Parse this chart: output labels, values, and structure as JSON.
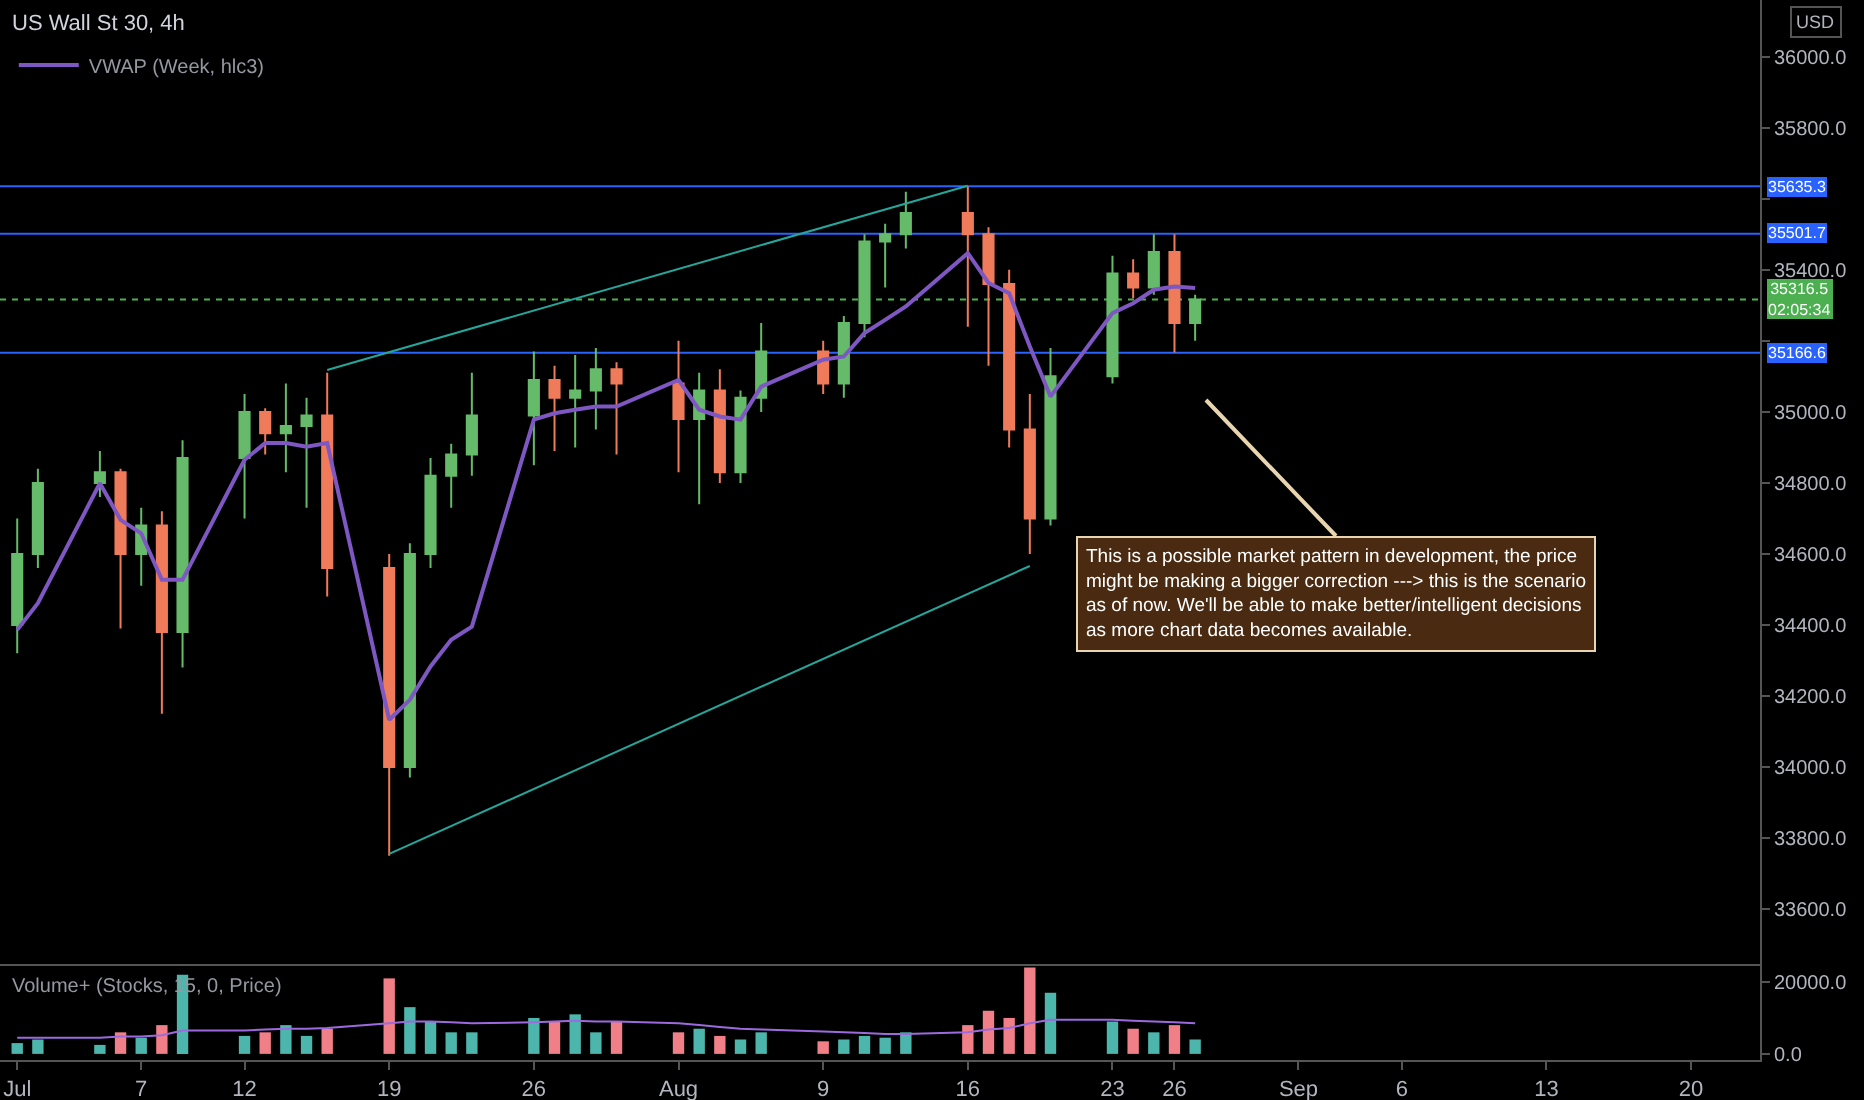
{
  "chart_data": [
    {
      "type": "candlestick",
      "title": "US Wall St 30, 4h",
      "ylabel": "USD",
      "x": [
        "--07-01",
        "--07-02",
        "--07-05",
        "--07-06",
        "--07-07",
        "--07-08",
        "--07-09",
        "--07-12",
        "--07-13",
        "--07-14",
        "--07-15",
        "--07-16",
        "--07-19",
        "--07-20",
        "--07-21",
        "--07-22",
        "--07-23",
        "--07-26",
        "--07-27",
        "--07-28",
        "--07-29",
        "--07-30",
        "--08-02",
        "--08-03",
        "--08-04",
        "--08-05",
        "--08-06",
        "--08-09",
        "--08-10",
        "--08-11",
        "--08-12",
        "--08-13",
        "--08-16",
        "--08-17",
        "--08-18",
        "--08-19",
        "--08-20",
        "--08-23",
        "--08-24",
        "--08-25",
        "--08-26",
        "--08-27"
      ],
      "ohlc": [
        [
          34400,
          34700,
          34320,
          34600
        ],
        [
          34600,
          34840,
          34560,
          34800
        ],
        [
          34800,
          34890,
          34760,
          34830
        ],
        [
          34830,
          34840,
          34390,
          34600
        ],
        [
          34600,
          34730,
          34510,
          34680
        ],
        [
          34680,
          34720,
          34150,
          34380
        ],
        [
          34380,
          34920,
          34280,
          34870
        ],
        [
          34870,
          35050,
          34700,
          35000
        ],
        [
          35000,
          35010,
          34880,
          34940
        ],
        [
          34940,
          35080,
          34830,
          34960
        ],
        [
          34960,
          35040,
          34730,
          34990
        ],
        [
          34990,
          35110,
          34480,
          34560
        ],
        [
          34560,
          34600,
          33750,
          34000
        ],
        [
          34000,
          34630,
          33970,
          34600
        ],
        [
          34600,
          34870,
          34560,
          34820
        ],
        [
          34820,
          34910,
          34730,
          34880
        ],
        [
          34880,
          35110,
          34820,
          34990
        ],
        [
          34990,
          35170,
          34850,
          35090
        ],
        [
          35090,
          35130,
          34890,
          35040
        ],
        [
          35040,
          35160,
          34900,
          35060
        ],
        [
          35060,
          35180,
          34950,
          35120
        ],
        [
          35120,
          35140,
          34880,
          35080
        ],
        [
          35080,
          35200,
          34830,
          34980
        ],
        [
          34980,
          35110,
          34740,
          35060
        ],
        [
          35060,
          35120,
          34800,
          34830
        ],
        [
          34830,
          35060,
          34800,
          35040
        ],
        [
          35040,
          35250,
          35000,
          35170
        ],
        [
          35170,
          35200,
          35050,
          35080
        ],
        [
          35080,
          35270,
          35040,
          35250
        ],
        [
          35250,
          35500,
          35210,
          35480
        ],
        [
          35480,
          35530,
          35350,
          35500
        ],
        [
          35500,
          35620,
          35460,
          35560
        ],
        [
          35560,
          35635,
          35240,
          35500
        ],
        [
          35500,
          35520,
          35130,
          35360
        ],
        [
          35360,
          35400,
          34900,
          34950
        ],
        [
          34950,
          35050,
          34600,
          34700
        ],
        [
          34700,
          35180,
          34680,
          35100
        ],
        [
          35100,
          35440,
          35080,
          35390
        ],
        [
          35390,
          35430,
          35320,
          35350
        ],
        [
          35350,
          35500,
          35330,
          35450
        ],
        [
          35450,
          35500,
          35167,
          35250
        ],
        [
          35250,
          35330,
          35200,
          35316.5
        ]
      ],
      "colors": [
        "#66bb6a",
        "#66bb6a",
        "#66bb6a",
        "#ef7b5b",
        "#66bb6a",
        "#ef7b5b",
        "#66bb6a",
        "#66bb6a",
        "#ef7b5b",
        "#66bb6a",
        "#66bb6a",
        "#ef7b5b",
        "#ef7b5b",
        "#66bb6a",
        "#66bb6a",
        "#66bb6a",
        "#66bb6a",
        "#66bb6a",
        "#ef7b5b",
        "#66bb6a",
        "#66bb6a",
        "#ef7b5b",
        "#ef7b5b",
        "#66bb6a",
        "#ef7b5b",
        "#66bb6a",
        "#66bb6a",
        "#ef7b5b",
        "#66bb6a",
        "#66bb6a",
        "#66bb6a",
        "#66bb6a",
        "#ef7b5b",
        "#ef7b5b",
        "#ef7b5b",
        "#ef7b5b",
        "#66bb6a",
        "#66bb6a",
        "#ef7b5b",
        "#66bb6a",
        "#ef7b5b",
        "#66bb6a"
      ],
      "series": [
        {
          "type": "line",
          "name": "VWAP (Week, hlc3)",
          "color": "#7e57c2",
          "values": [
            34386,
            34461,
            34799,
            34696,
            34658,
            34527,
            34527,
            34865,
            34912,
            34912,
            34902,
            34912,
            34133,
            34189,
            34283,
            34358,
            34395,
            34978,
            34996,
            35006,
            35015,
            35015,
            35090,
            35006,
            34987,
            34978,
            35071,
            35147,
            35156,
            35222,
            35259,
            35297,
            35447,
            35363,
            35334,
            35184,
            35043,
            35278,
            35306,
            35344,
            35353,
            35349
          ]
        },
        {
          "type": "line",
          "color": "#26a69a",
          "x": [
            "--07-16",
            "--08-16"
          ],
          "values": [
            35118,
            35637
          ]
        },
        {
          "type": "line",
          "color": "#26a69a",
          "x": [
            "--07-19",
            "--08-19"
          ],
          "values": [
            33755,
            34566
          ]
        }
      ],
      "ref_lines": [
        {
          "axis": "y",
          "value": 35635.3,
          "label": "35635.3",
          "color": "#2962ff",
          "line_style": "solid"
        },
        {
          "axis": "y",
          "value": 35501.7,
          "label": "35501.7",
          "color": "#2962ff",
          "line_style": "solid"
        },
        {
          "axis": "y",
          "value": 35166.6,
          "label": "35166.6",
          "color": "#2962ff",
          "line_style": "solid"
        },
        {
          "axis": "y",
          "value": 35316.5,
          "label": "35316.5\n02:05:34",
          "color": "#4caf50",
          "line_style": "dotted"
        }
      ],
      "annotations": [
        "This is a possible market pattern in development, the price might be making a bigger correction ---> this is the scenario as of now. We'll be able to make better/intelligent decisions as more chart data becomes available."
      ],
      "xlim": [
        "--06-30T04:00",
        "--09-23T08:00"
      ],
      "ylim": [
        33445,
        36160
      ],
      "yticks": [
        {
          "value": 33600,
          "label": "33600.0"
        },
        {
          "value": 33800,
          "label": "33800.0"
        },
        {
          "value": 34000,
          "label": "34000.0"
        },
        {
          "value": 34200,
          "label": "34200.0"
        },
        {
          "value": 34400,
          "label": "34400.0"
        },
        {
          "value": 34600,
          "label": "34600.0"
        },
        {
          "value": 34800,
          "label": "34800.0"
        },
        {
          "value": 35000,
          "label": "35000.0"
        },
        {
          "value": 35200,
          "label": null
        },
        {
          "value": 35400,
          "label": "35400.0"
        },
        {
          "value": 35600,
          "label": null
        },
        {
          "value": 35800,
          "label": "35800.0"
        },
        {
          "value": 36000,
          "label": "36000.0"
        }
      ],
      "tick_labels": "y",
      "legend": "top left",
      "grid": false
    },
    {
      "type": "bar",
      "title": "Volume+ (Stocks, 15, 0, Price)",
      "x": [
        "--07-01",
        "--07-02",
        "--07-05",
        "--07-06",
        "--07-07",
        "--07-08",
        "--07-09",
        "--07-12",
        "--07-13",
        "--07-14",
        "--07-15",
        "--07-16",
        "--07-19",
        "--07-20",
        "--07-21",
        "--07-22",
        "--07-23",
        "--07-26",
        "--07-27",
        "--07-28",
        "--07-29",
        "--07-30",
        "--08-02",
        "--08-03",
        "--08-04",
        "--08-05",
        "--08-06",
        "--08-09",
        "--08-10",
        "--08-11",
        "--08-12",
        "--08-13",
        "--08-16",
        "--08-17",
        "--08-18",
        "--08-19",
        "--08-20",
        "--08-23",
        "--08-24",
        "--08-25",
        "--08-26",
        "--08-27"
      ],
      "series": [
        {
          "type": "bar",
          "values": [
            3000,
            4000,
            2500,
            6000,
            4500,
            8000,
            22000,
            5000,
            6000,
            8000,
            5000,
            7000,
            21000,
            13000,
            9000,
            6000,
            6000,
            10000,
            9000,
            11000,
            6000,
            9000,
            6000,
            7000,
            5000,
            4000,
            6000,
            3500,
            4000,
            5000,
            4500,
            6000,
            8000,
            12000,
            10000,
            24000,
            17000,
            9000,
            7000,
            6000,
            8000,
            4000
          ],
          "colors": [
            "#4db6ac",
            "#4db6ac",
            "#4db6ac",
            "#f07f88",
            "#4db6ac",
            "#f07f88",
            "#4db6ac",
            "#4db6ac",
            "#f07f88",
            "#4db6ac",
            "#4db6ac",
            "#f07f88",
            "#f07f88",
            "#4db6ac",
            "#4db6ac",
            "#4db6ac",
            "#4db6ac",
            "#4db6ac",
            "#f07f88",
            "#4db6ac",
            "#4db6ac",
            "#f07f88",
            "#f07f88",
            "#4db6ac",
            "#f07f88",
            "#4db6ac",
            "#4db6ac",
            "#f07f88",
            "#4db6ac",
            "#4db6ac",
            "#4db6ac",
            "#4db6ac",
            "#f07f88",
            "#f07f88",
            "#f07f88",
            "#f07f88",
            "#4db6ac",
            "#4db6ac",
            "#f07f88",
            "#4db6ac",
            "#f07f88",
            "#4db6ac"
          ]
        },
        {
          "type": "line",
          "color": "#9c6ade",
          "values": [
            4500,
            4500,
            4500,
            4800,
            4800,
            5200,
            6500,
            6500,
            6800,
            7000,
            7000,
            7200,
            8500,
            9000,
            9000,
            8800,
            8500,
            8800,
            9000,
            9200,
            9000,
            9000,
            8500,
            8000,
            7500,
            7000,
            6800,
            6200,
            6000,
            5800,
            5500,
            5500,
            6000,
            6800,
            7200,
            8500,
            9500,
            9500,
            9200,
            9000,
            8800,
            8500
          ]
        }
      ],
      "xlim": [
        "--06-30T04:00",
        "--09-23T08:00"
      ],
      "xticks": [
        {
          "value": "--07-01",
          "label": "Jul"
        },
        {
          "value": "--07-07",
          "label": "7"
        },
        {
          "value": "--07-12",
          "label": "12"
        },
        {
          "value": "--07-19",
          "label": "19"
        },
        {
          "value": "--07-26",
          "label": "26"
        },
        {
          "value": "--08-02",
          "label": "Aug"
        },
        {
          "value": "--08-09",
          "label": "9"
        },
        {
          "value": "--08-16",
          "label": "16"
        },
        {
          "value": "--08-23",
          "label": "23"
        },
        {
          "value": "--08-26",
          "label": "26"
        },
        {
          "value": "--09-01",
          "label": "Sep"
        },
        {
          "value": "--09-06",
          "label": "6"
        },
        {
          "value": "--09-13",
          "label": "13"
        },
        {
          "value": "--09-20",
          "label": "20"
        }
      ],
      "ylim": [
        -1700,
        25000
      ],
      "yticks": [
        {
          "value": 0,
          "label": "0.0"
        },
        {
          "value": 20000,
          "label": "20000.0"
        }
      ],
      "grid": false
    }
  ]
}
